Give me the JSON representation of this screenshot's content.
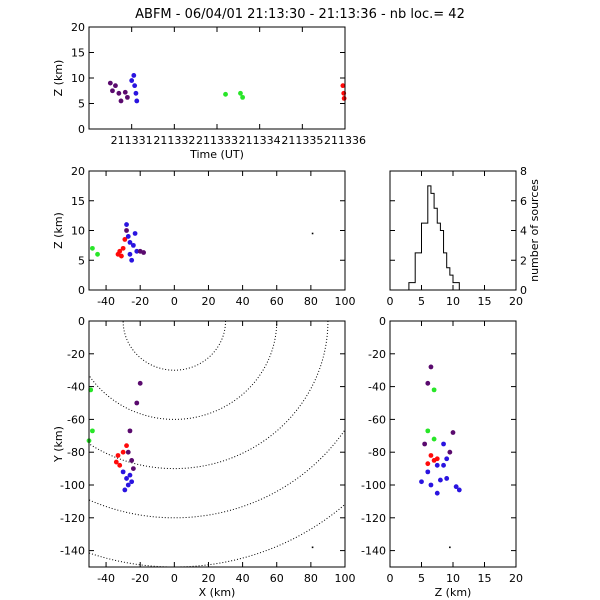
{
  "title": {
    "station": "ABFM",
    "date": "06/04/01",
    "time_range": "21:13:30 - 21:13:36",
    "count_label": "nb loc.=",
    "count": "42"
  },
  "colors": {
    "early": "#5a0a6e",
    "mid": "#2a14e0",
    "green": "#28e628",
    "late": "#ff0a0a",
    "axis": "#000000"
  },
  "chart_data": [
    {
      "type": "scatter",
      "id": "time_height",
      "xlabel": "Time (UT)",
      "ylabel": "Z (km)",
      "xlim": [
        211330,
        211336
      ],
      "ylim": [
        0,
        20
      ],
      "xticks": [
        "211331",
        "211332",
        "211333",
        "211334",
        "211335",
        "211336"
      ],
      "yticks": [
        "0",
        "5",
        "10",
        "15",
        "20"
      ],
      "points": [
        {
          "x": 211330.5,
          "y": 9.0,
          "c": "early"
        },
        {
          "x": 211330.55,
          "y": 7.5,
          "c": "early"
        },
        {
          "x": 211330.62,
          "y": 8.5,
          "c": "early"
        },
        {
          "x": 211330.7,
          "y": 7.0,
          "c": "early"
        },
        {
          "x": 211330.75,
          "y": 5.5,
          "c": "early"
        },
        {
          "x": 211330.85,
          "y": 7.2,
          "c": "early"
        },
        {
          "x": 211330.9,
          "y": 6.2,
          "c": "early"
        },
        {
          "x": 211331.0,
          "y": 9.5,
          "c": "mid"
        },
        {
          "x": 211331.05,
          "y": 10.5,
          "c": "mid"
        },
        {
          "x": 211331.07,
          "y": 8.5,
          "c": "mid"
        },
        {
          "x": 211331.1,
          "y": 7.0,
          "c": "mid"
        },
        {
          "x": 211331.12,
          "y": 5.5,
          "c": "mid"
        },
        {
          "x": 211333.2,
          "y": 6.8,
          "c": "green"
        },
        {
          "x": 211333.55,
          "y": 7.0,
          "c": "green"
        },
        {
          "x": 211333.6,
          "y": 6.2,
          "c": "green"
        },
        {
          "x": 211335.95,
          "y": 8.5,
          "c": "late"
        },
        {
          "x": 211335.97,
          "y": 7.0,
          "c": "late"
        },
        {
          "x": 211335.98,
          "y": 6.0,
          "c": "late"
        }
      ]
    },
    {
      "type": "scatter",
      "id": "x_z",
      "ylabel": "Z (km)",
      "xlim": [
        -50,
        100
      ],
      "ylim": [
        0,
        20
      ],
      "xticks": [
        "-40",
        "-20",
        "0",
        "20",
        "40",
        "60",
        "80",
        "100"
      ],
      "yticks": [
        "0",
        "5",
        "10",
        "15",
        "20"
      ],
      "points": [
        {
          "x": -48,
          "y": 7.0,
          "c": "green"
        },
        {
          "x": -45,
          "y": 6.0,
          "c": "green"
        },
        {
          "x": -33,
          "y": 6.0,
          "c": "late"
        },
        {
          "x": -32,
          "y": 6.5,
          "c": "late"
        },
        {
          "x": -31,
          "y": 5.7,
          "c": "late"
        },
        {
          "x": -30,
          "y": 7.0,
          "c": "late"
        },
        {
          "x": -29,
          "y": 8.5,
          "c": "late"
        },
        {
          "x": -28,
          "y": 11.0,
          "c": "mid"
        },
        {
          "x": -27,
          "y": 9.0,
          "c": "mid"
        },
        {
          "x": -26,
          "y": 8.0,
          "c": "mid"
        },
        {
          "x": -26,
          "y": 6.0,
          "c": "mid"
        },
        {
          "x": -25,
          "y": 5.0,
          "c": "mid"
        },
        {
          "x": -24,
          "y": 7.5,
          "c": "mid"
        },
        {
          "x": -23,
          "y": 9.5,
          "c": "mid"
        },
        {
          "x": -22,
          "y": 6.5,
          "c": "mid"
        },
        {
          "x": -28,
          "y": 10.0,
          "c": "early"
        },
        {
          "x": -20,
          "y": 6.5,
          "c": "early"
        },
        {
          "x": -18,
          "y": 6.3,
          "c": "early"
        },
        {
          "x": 81,
          "y": 9.5,
          "c": "axis"
        }
      ]
    },
    {
      "type": "bar",
      "id": "z_histogram",
      "ylabel": "number of sources",
      "xlim": [
        0,
        20
      ],
      "ylim": [
        0,
        8
      ],
      "xticks": [
        "0",
        "5",
        "10",
        "15",
        "20"
      ],
      "yticks": [
        "0",
        "2",
        "4",
        "6",
        "8"
      ],
      "bin_edges": [
        3,
        4,
        5,
        6,
        6.5,
        7,
        7.5,
        8,
        8.5,
        9,
        9.5,
        10,
        11,
        12
      ],
      "counts": [
        0.5,
        2.5,
        4.5,
        7.0,
        6.5,
        5.5,
        4.5,
        4.0,
        2.5,
        1.5,
        1.0,
        0.5,
        0
      ]
    },
    {
      "type": "scatter",
      "id": "x_y",
      "xlabel": "X (km)",
      "ylabel": "Y (km)",
      "xlim": [
        -50,
        100
      ],
      "ylim": [
        -150,
        0
      ],
      "xticks": [
        "-40",
        "-20",
        "0",
        "20",
        "40",
        "60",
        "80",
        "100"
      ],
      "yticks": [
        "0",
        "-20",
        "-40",
        "-60",
        "-80",
        "-100",
        "-120",
        "-140"
      ],
      "range_rings_km": [
        30,
        60,
        90,
        120,
        150
      ],
      "points": [
        {
          "x": -48,
          "y": -67,
          "c": "green"
        },
        {
          "x": -50,
          "y": -73,
          "c": "green"
        },
        {
          "x": -49,
          "y": -42,
          "c": "green"
        },
        {
          "x": -20,
          "y": -38,
          "c": "early"
        },
        {
          "x": -22,
          "y": -50,
          "c": "early"
        },
        {
          "x": -26,
          "y": -67,
          "c": "early"
        },
        {
          "x": -28,
          "y": -76,
          "c": "late"
        },
        {
          "x": -30,
          "y": -80,
          "c": "late"
        },
        {
          "x": -33,
          "y": -82,
          "c": "late"
        },
        {
          "x": -34,
          "y": -86,
          "c": "late"
        },
        {
          "x": -32,
          "y": -88,
          "c": "late"
        },
        {
          "x": -27,
          "y": -80,
          "c": "early"
        },
        {
          "x": -25,
          "y": -85,
          "c": "early"
        },
        {
          "x": -24,
          "y": -90,
          "c": "early"
        },
        {
          "x": -26,
          "y": -94,
          "c": "mid"
        },
        {
          "x": -28,
          "y": -96,
          "c": "mid"
        },
        {
          "x": -27,
          "y": -100,
          "c": "mid"
        },
        {
          "x": -29,
          "y": -103,
          "c": "mid"
        },
        {
          "x": -25,
          "y": -98,
          "c": "mid"
        },
        {
          "x": -30,
          "y": -92,
          "c": "mid"
        },
        {
          "x": 81,
          "y": -138,
          "c": "axis"
        }
      ]
    },
    {
      "type": "scatter",
      "id": "z_y",
      "xlabel": "Z (km)",
      "xlim": [
        0,
        20
      ],
      "ylim": [
        -150,
        0
      ],
      "xticks": [
        "0",
        "5",
        "10",
        "15",
        "20"
      ],
      "yticks": [
        "0",
        "-20",
        "-40",
        "-60",
        "-80",
        "-100",
        "-120",
        "-140"
      ],
      "points": [
        {
          "x": 6.5,
          "y": -28,
          "c": "early"
        },
        {
          "x": 6.0,
          "y": -38,
          "c": "early"
        },
        {
          "x": 7.0,
          "y": -42,
          "c": "green"
        },
        {
          "x": 6.0,
          "y": -67,
          "c": "green"
        },
        {
          "x": 7.0,
          "y": -72,
          "c": "green"
        },
        {
          "x": 5.5,
          "y": -75,
          "c": "early"
        },
        {
          "x": 10.0,
          "y": -68,
          "c": "early"
        },
        {
          "x": 8.5,
          "y": -75,
          "c": "mid"
        },
        {
          "x": 6.5,
          "y": -82,
          "c": "late"
        },
        {
          "x": 7.0,
          "y": -85,
          "c": "late"
        },
        {
          "x": 7.5,
          "y": -84,
          "c": "late"
        },
        {
          "x": 6.0,
          "y": -87,
          "c": "late"
        },
        {
          "x": 7.5,
          "y": -88,
          "c": "mid"
        },
        {
          "x": 8.5,
          "y": -88,
          "c": "mid"
        },
        {
          "x": 9.0,
          "y": -84,
          "c": "mid"
        },
        {
          "x": 9.5,
          "y": -80,
          "c": "early"
        },
        {
          "x": 6.0,
          "y": -92,
          "c": "mid"
        },
        {
          "x": 5.0,
          "y": -98,
          "c": "mid"
        },
        {
          "x": 6.5,
          "y": -100,
          "c": "mid"
        },
        {
          "x": 8.0,
          "y": -97,
          "c": "mid"
        },
        {
          "x": 9.0,
          "y": -96,
          "c": "mid"
        },
        {
          "x": 10.5,
          "y": -101,
          "c": "mid"
        },
        {
          "x": 11.0,
          "y": -103,
          "c": "mid"
        },
        {
          "x": 7.5,
          "y": -105,
          "c": "mid"
        },
        {
          "x": 9.5,
          "y": -138,
          "c": "axis"
        }
      ]
    }
  ]
}
